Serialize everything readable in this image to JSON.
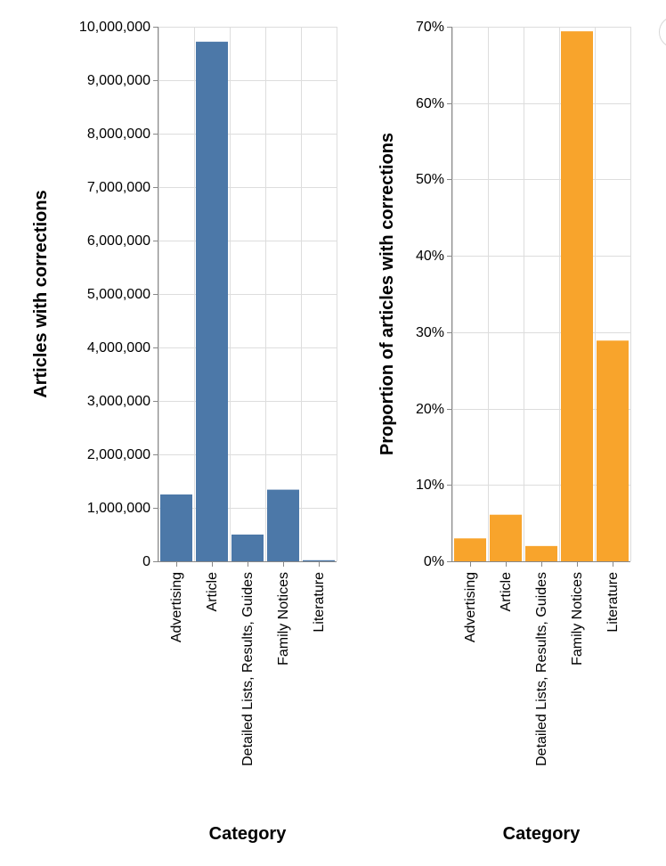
{
  "chart_data": [
    {
      "type": "bar",
      "color": "#4c78a8",
      "categories": [
        "Advertising",
        "Article",
        "Detailed Lists, Results, Guides",
        "Family Notices",
        "Literature"
      ],
      "values": [
        1250000,
        9720000,
        500000,
        1340000,
        20000
      ],
      "ylabel": "Articles with corrections",
      "xlabel": "Category",
      "ylim": [
        0,
        10000000
      ],
      "yticks": [
        0,
        1000000,
        2000000,
        3000000,
        4000000,
        5000000,
        6000000,
        7000000,
        8000000,
        9000000,
        10000000
      ],
      "ytick_labels": [
        "0",
        "1,000,000",
        "2,000,000",
        "3,000,000",
        "4,000,000",
        "5,000,000",
        "6,000,000",
        "7,000,000",
        "8,000,000",
        "9,000,000",
        "10,000,000"
      ],
      "grid": true
    },
    {
      "type": "bar",
      "color": "#f8a42c",
      "categories": [
        "Advertising",
        "Article",
        "Detailed Lists, Results, Guides",
        "Family Notices",
        "Literature"
      ],
      "values": [
        0.03,
        0.061,
        0.02,
        0.694,
        0.289
      ],
      "ylabel": "Proportion of articles with corrections",
      "xlabel": "Category",
      "ylim": [
        0,
        0.7
      ],
      "yticks": [
        0,
        0.1,
        0.2,
        0.3,
        0.4,
        0.5,
        0.6,
        0.7
      ],
      "ytick_labels": [
        "0%",
        "10%",
        "20%",
        "30%",
        "40%",
        "50%",
        "60%",
        "70%"
      ],
      "grid": true
    }
  ]
}
